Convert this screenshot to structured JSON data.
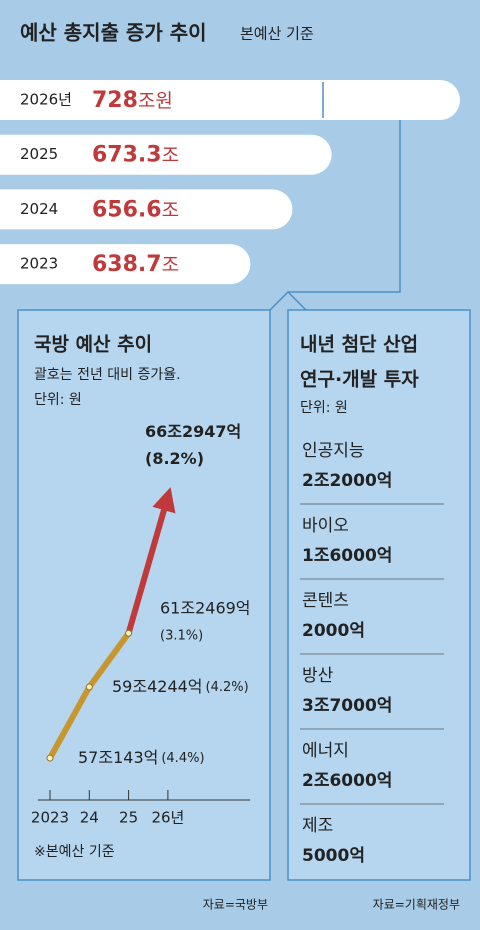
{
  "title": "예산 총지출 증가 추이",
  "subtitle": "본예산 기준",
  "chart_data": [
    {
      "type": "hbar",
      "categories": [
        "2026년",
        "2025",
        "2024",
        "2023"
      ],
      "values": [
        728,
        673.3,
        656.6,
        638.7
      ],
      "units": [
        "조원",
        "조",
        "조",
        "조"
      ],
      "color": "#ffffff",
      "label_color": "#c0393b",
      "xlim": [
        532,
        728
      ]
    },
    {
      "type": "line",
      "title": "국방 예산 추이",
      "notes": [
        "괄호는 전년 대비 증가율.",
        "단위: 원"
      ],
      "categories": [
        "2023",
        "24",
        "25",
        "26년"
      ],
      "values": [
        57.0143,
        59.4244,
        61.2469,
        66.2947
      ],
      "value_labels": [
        "57조143억",
        "59조4244억",
        "61조2469억",
        "66조2947억"
      ],
      "growth": [
        4.4,
        4.2,
        3.1,
        8.2
      ],
      "growth_labels": [
        "(4.4%)",
        "(4.2%)",
        "(3.1%)",
        "(8.2%)"
      ],
      "colors": [
        "#c8962e",
        "#c8962e",
        "#c0393b"
      ],
      "ylim": [
        56,
        67
      ],
      "footnote": "※본예산 기준"
    }
  ],
  "rd_panel": {
    "title": [
      "내년 첨단 산업",
      "연구·개발 투자"
    ],
    "unit": "단위: 원",
    "items": [
      {
        "name": "인공지능",
        "amount": "2조2000억"
      },
      {
        "name": "바이오",
        "amount": "1조6000억"
      },
      {
        "name": "콘텐츠",
        "amount": "2000억"
      },
      {
        "name": "방산",
        "amount": "3조7000억"
      },
      {
        "name": "에너지",
        "amount": "2조6000억"
      },
      {
        "name": "제조",
        "amount": "5000억"
      }
    ]
  },
  "sources": [
    "자료=국방부",
    "자료=기획재정부"
  ]
}
